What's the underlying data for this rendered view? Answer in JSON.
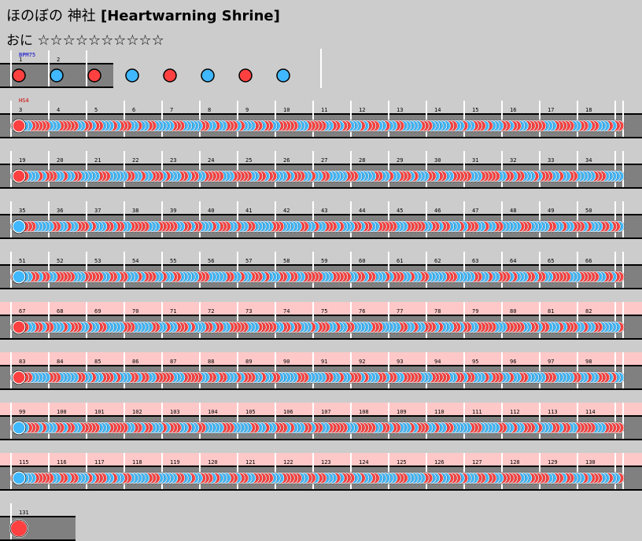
{
  "song": {
    "title_jp": "ほのぼの 神社",
    "title_en": "[Heartwarning Shrine]",
    "difficulty": "おに",
    "stars": "☆☆☆☆☆☆☆☆☆☆"
  },
  "tempo": {
    "bpm_label": "BPM75",
    "hs_label": "HS4"
  },
  "colors": {
    "background": "#cccccc",
    "lane": "#808080",
    "don": "#ff4040",
    "ka": "#40b8ff",
    "gogo_band": "#ffc8c8",
    "bar_line": "#ffffff",
    "bpm_label": "#0000cc",
    "hs_label": "#cc0000"
  },
  "chart_rows": [
    {
      "measures": [
        1,
        2
      ],
      "gogo": false
    },
    {
      "measures": [
        3,
        4,
        5,
        6,
        7,
        8,
        9,
        10,
        11,
        12,
        13,
        14,
        15,
        16,
        17,
        18
      ],
      "gogo": false
    },
    {
      "measures": [
        19,
        20,
        21,
        22,
        23,
        24,
        25,
        26,
        27,
        28,
        29,
        30,
        31,
        32,
        33,
        34
      ],
      "gogo": false
    },
    {
      "measures": [
        35,
        36,
        37,
        38,
        39,
        40,
        41,
        42,
        43,
        44,
        45,
        46,
        47,
        48,
        49,
        50
      ],
      "gogo": false
    },
    {
      "measures": [
        51,
        52,
        53,
        54,
        55,
        56,
        57,
        58,
        59,
        60,
        61,
        62,
        63,
        64,
        65,
        66
      ],
      "gogo": false
    },
    {
      "measures": [
        67,
        68,
        69,
        70,
        71,
        72,
        73,
        74,
        75,
        76,
        77,
        78,
        79,
        80,
        81,
        82
      ],
      "gogo": true
    },
    {
      "measures": [
        83,
        84,
        85,
        86,
        87,
        88,
        89,
        90,
        91,
        92,
        93,
        94,
        95,
        96,
        97,
        98
      ],
      "gogo": true
    },
    {
      "measures": [
        99,
        100,
        101,
        102,
        103,
        104,
        105,
        106,
        107,
        108,
        109,
        110,
        111,
        112,
        113,
        114
      ],
      "gogo": true
    },
    {
      "measures": [
        115,
        116,
        117,
        118,
        119,
        120,
        121,
        122,
        123,
        124,
        125,
        126,
        127,
        128,
        129,
        130
      ],
      "gogo": true
    },
    {
      "measures": [
        131
      ],
      "gogo": false
    }
  ]
}
